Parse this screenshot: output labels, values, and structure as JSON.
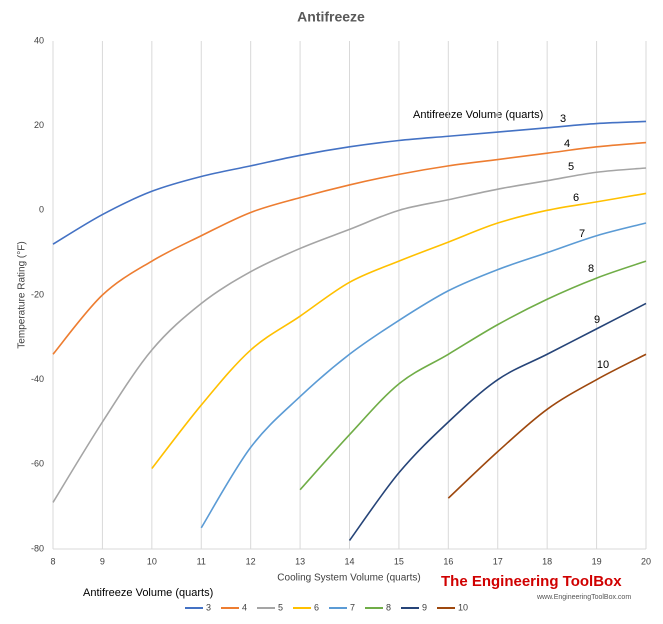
{
  "chart_data": {
    "type": "line",
    "title": "Antifreeze",
    "x_label": "Cooling System Volume (quarts)",
    "y_label": "Temperature Rating (°F)",
    "annotation": "Antifreeze Volume (quarts)",
    "legend_title": "Antifreeze Volume (quarts)",
    "x": [
      8,
      9,
      10,
      11,
      12,
      13,
      14,
      15,
      16,
      17,
      18,
      19,
      20
    ],
    "series": [
      {
        "name": "3",
        "color": "#4472c4",
        "values": [
          -8,
          -1,
          4.5,
          8,
          10.5,
          13,
          15,
          16.5,
          17.5,
          18.5,
          19.5,
          20.5,
          21
        ]
      },
      {
        "name": "4",
        "color": "#ed7d31",
        "values": [
          -34,
          -20,
          -12,
          -6,
          -0.5,
          3,
          6,
          8.5,
          10.5,
          12,
          13.5,
          15,
          16
        ]
      },
      {
        "name": "5",
        "color": "#a5a5a5",
        "values": [
          -69,
          -50,
          -33,
          -22,
          -14.5,
          -9,
          -4.5,
          0,
          2.5,
          5,
          7,
          9,
          10
        ]
      },
      {
        "name": "6",
        "color": "#ffc000",
        "values": [
          null,
          null,
          -61,
          -46,
          -33,
          -25,
          -17,
          -12,
          -7.5,
          -3,
          0,
          2,
          4
        ]
      },
      {
        "name": "7",
        "color": "#5b9bd5",
        "values": [
          null,
          null,
          null,
          -75,
          -56,
          -44,
          -34,
          -26,
          -19,
          -14,
          -10,
          -6,
          -3
        ]
      },
      {
        "name": "8",
        "color": "#70ad47",
        "values": [
          null,
          null,
          null,
          null,
          null,
          -66,
          -53,
          -41,
          -34,
          -27,
          -21,
          -16,
          -12
        ]
      },
      {
        "name": "9",
        "color": "#264478",
        "values": [
          null,
          null,
          null,
          null,
          null,
          null,
          -78,
          -62,
          -50,
          -40,
          -34,
          -28,
          -22
        ]
      },
      {
        "name": "10",
        "color": "#9e480e",
        "values": [
          null,
          null,
          null,
          null,
          null,
          null,
          null,
          null,
          -68,
          -57,
          -47,
          -40,
          -34
        ]
      }
    ],
    "xlim": [
      8,
      20
    ],
    "xticks": [
      8,
      9,
      10,
      11,
      12,
      13,
      14,
      15,
      16,
      17,
      18,
      19,
      20
    ],
    "ylim": [
      -80,
      40
    ],
    "yticks": [
      -80,
      -60,
      -40,
      -20,
      0,
      20,
      40
    ],
    "grid": "x",
    "legend": "bottom"
  },
  "watermark": {
    "brand": "The Engineering ToolBox",
    "url": "www.EngineeringToolBox.com"
  }
}
